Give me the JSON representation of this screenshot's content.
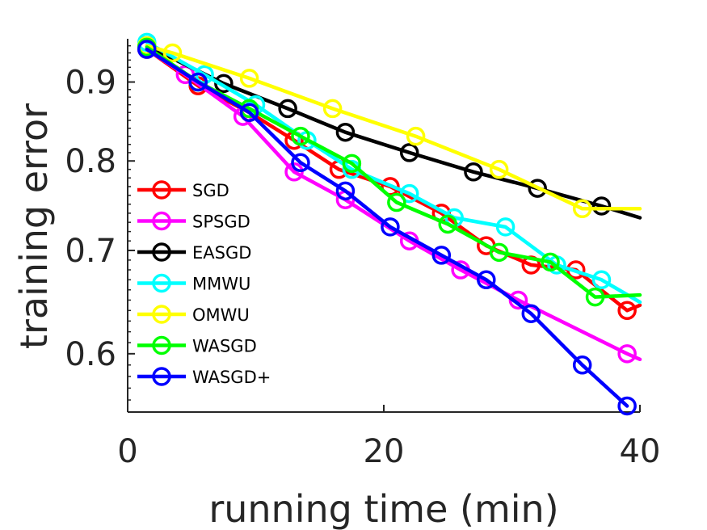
{
  "chart_data": {
    "type": "line",
    "title": "",
    "xlabel": "running time (min)",
    "ylabel": "training error",
    "xlim": [
      0,
      40
    ],
    "ylim": [
      0.55,
      0.96
    ],
    "yscale": "log",
    "xticks": [
      0,
      20,
      40
    ],
    "xtick_labels": [
      "0",
      "20",
      "40"
    ],
    "yticks": [
      0.6,
      0.7,
      0.8,
      0.9
    ],
    "ytick_labels": [
      "0.6",
      "0.7",
      "0.8",
      "0.9"
    ],
    "grid": false,
    "legend_position": "bottom-left",
    "series": [
      {
        "name": "SGD",
        "color": "#ff0000",
        "x": [
          1.5,
          5.5,
          9.5,
          13,
          16.5,
          20.5,
          24.5,
          28,
          31.5,
          35,
          39,
          40
        ],
        "y": [
          0.945,
          0.895,
          0.86,
          0.825,
          0.79,
          0.77,
          0.74,
          0.705,
          0.685,
          0.68,
          0.64,
          0.645
        ]
      },
      {
        "name": "SPSGD",
        "color": "#ff00ff",
        "x": [
          1.5,
          4.5,
          9,
          13,
          17,
          22,
          26,
          30.5,
          39,
          40
        ],
        "y": [
          0.945,
          0.91,
          0.855,
          0.787,
          0.755,
          0.71,
          0.68,
          0.65,
          0.6,
          0.595
        ]
      },
      {
        "name": "EASGD",
        "color": "#000000",
        "x": [
          1.5,
          7.5,
          12.5,
          17,
          22,
          27,
          32,
          37,
          40
        ],
        "y": [
          0.95,
          0.898,
          0.865,
          0.835,
          0.81,
          0.787,
          0.768,
          0.748,
          0.735
        ]
      },
      {
        "name": "MMWU",
        "color": "#00ffff",
        "x": [
          1.5,
          6,
          10,
          14,
          17.5,
          22,
          25.5,
          29.5,
          33.5,
          37,
          40
        ],
        "y": [
          0.955,
          0.91,
          0.87,
          0.825,
          0.79,
          0.762,
          0.735,
          0.725,
          0.685,
          0.67,
          0.648
        ]
      },
      {
        "name": "OMWU",
        "color": "#ffff00",
        "x": [
          1.5,
          3.5,
          9.5,
          16,
          22.5,
          29,
          35.5,
          40
        ],
        "y": [
          0.95,
          0.94,
          0.905,
          0.865,
          0.83,
          0.79,
          0.745,
          0.745
        ]
      },
      {
        "name": "WASGD",
        "color": "#00ff00",
        "x": [
          1.5,
          5.5,
          9.5,
          13.5,
          17.5,
          21,
          25,
          29,
          33,
          36.5,
          40
        ],
        "y": [
          0.948,
          0.9,
          0.865,
          0.83,
          0.797,
          0.752,
          0.728,
          0.698,
          0.688,
          0.653,
          0.655
        ]
      },
      {
        "name": "WASGD+",
        "color": "#0000ff",
        "x": [
          1.5,
          5.5,
          9.5,
          13.5,
          17,
          20.5,
          24.5,
          28,
          31.5,
          35.5,
          39
        ],
        "y": [
          0.945,
          0.9,
          0.86,
          0.798,
          0.765,
          0.725,
          0.695,
          0.67,
          0.637,
          0.59,
          0.555
        ]
      }
    ]
  }
}
